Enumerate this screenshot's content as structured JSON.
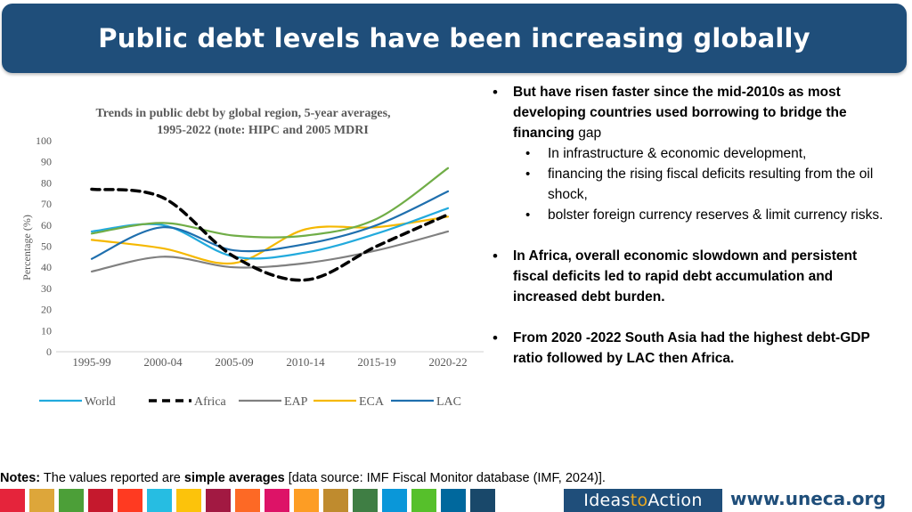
{
  "title": "Public debt levels have been increasing globally",
  "bullets": {
    "b1_bold": "But have risen faster since the mid-2010s as most developing countries used borrowing to bridge the financing",
    "b1_rest": " gap",
    "sub": [
      "In infrastructure & economic development,",
      " financing the rising fiscal deficits  resulting from the oil shock,",
      "bolster foreign currency reserves & limit currency risks."
    ],
    "b2": "In Africa, overall economic slowdown and persistent fiscal deficits led to rapid debt accumulation and increased debt burden.",
    "b3": " From 2020 -2022 South Asia had the highest debt-GDP ratio followed by LAC then Africa."
  },
  "notes": {
    "label": "Notes:",
    "text1": " The values reported are ",
    "bold": "simple averages",
    "text2": " [data source: IMF Fiscal Monitor database (IMF, 2024)]."
  },
  "footer": {
    "ideas_a": "Ideas",
    "ideas_to": "to",
    "ideas_b": "Action",
    "site": "www.uneca.org",
    "sdg_colors": [
      "#e5243b",
      "#dda63a",
      "#4c9f38",
      "#c5192d",
      "#ff3a21",
      "#26bde2",
      "#fcc30b",
      "#a21942",
      "#fd6925",
      "#dd1367",
      "#fd9d24",
      "#bf8b2e",
      "#3f7e44",
      "#0a97d9",
      "#56c02b",
      "#00689d",
      "#19486a"
    ]
  },
  "chart_data": {
    "type": "line",
    "title_line1": "Trends in public debt by global region, 5-year averages,",
    "title_line2": "1995-2022 (note: HIPC and 2005 MDRI",
    "ylabel": "Percentage (%)",
    "xlabel": "",
    "ylim": [
      0,
      100
    ],
    "yticks": [
      0,
      10,
      20,
      30,
      40,
      50,
      60,
      70,
      80,
      90,
      100
    ],
    "categories": [
      "1995-99",
      "2000-04",
      "2005-09",
      "2010-14",
      "2015-19",
      "2020-22"
    ],
    "grid": false,
    "legend": "bottom",
    "series": [
      {
        "name": "World",
        "color": "#22aadd",
        "dash": false,
        "values": [
          57,
          60,
          45,
          47,
          56,
          68
        ]
      },
      {
        "name": "Africa",
        "color": "#000000",
        "dash": true,
        "values": [
          77,
          73,
          45,
          34,
          50,
          65
        ]
      },
      {
        "name": "EAP",
        "color": "#808080",
        "dash": false,
        "values": [
          38,
          45,
          40,
          42,
          48,
          57
        ]
      },
      {
        "name": "ECA",
        "color": "#f5b800",
        "dash": false,
        "values": [
          53,
          49,
          42,
          58,
          59,
          64
        ]
      },
      {
        "name": "LAC",
        "color": "#1f6fae",
        "dash": false,
        "values": [
          44,
          59,
          48,
          51,
          60,
          76
        ]
      },
      {
        "name": "",
        "color": "#70ad47",
        "dash": false,
        "values": [
          56,
          61,
          55,
          55,
          63,
          87
        ]
      }
    ]
  }
}
